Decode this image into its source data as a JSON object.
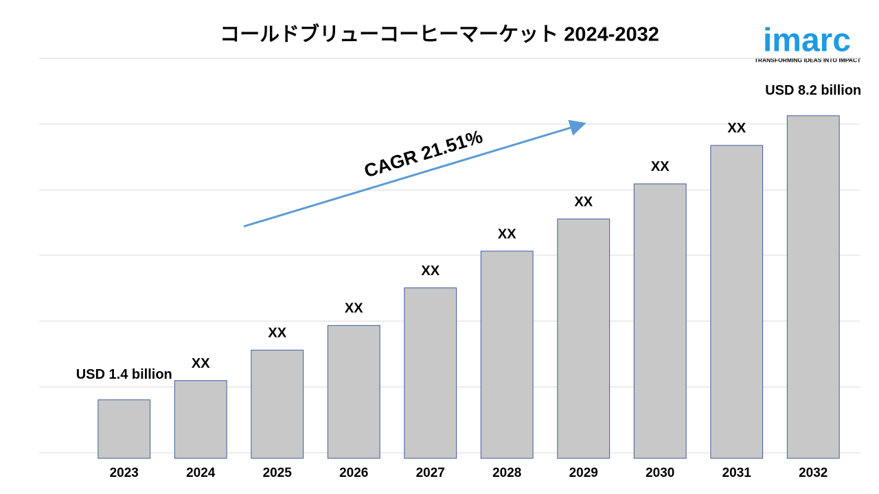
{
  "chart_data": {
    "type": "bar",
    "title": "コールドブリューコーヒーマーケット 2024-2032",
    "categories": [
      "2023",
      "2024",
      "2025",
      "2026",
      "2027",
      "2028",
      "2029",
      "2030",
      "2031",
      "2032"
    ],
    "values": [
      1.4,
      1.86,
      2.59,
      3.18,
      4.08,
      4.96,
      5.73,
      6.57,
      7.49,
      8.2
    ],
    "value_labels": [
      "USD 1.4 billion",
      "XX",
      "XX",
      "XX",
      "XX",
      "XX",
      "XX",
      "XX",
      "XX",
      "USD 8.2 billion"
    ],
    "color": "#c8c8c8",
    "ylim": [
      0,
      9
    ],
    "annotation": "CAGR 21.51%"
  },
  "logo": {
    "name": "imarc",
    "tagline": "TRANSFORMING IDEAS INTO IMPACT"
  }
}
